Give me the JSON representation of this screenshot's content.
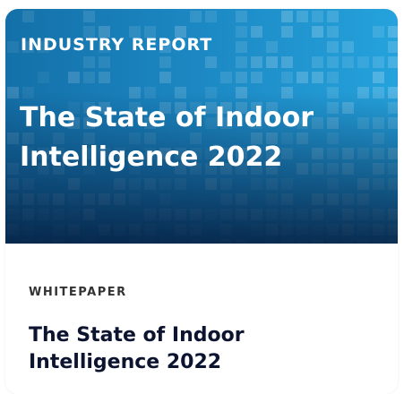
{
  "banner": {
    "label": "INDUSTRY REPORT",
    "title": "The State of Indoor Intelligence 2022",
    "colors": {
      "start": "#1470a8",
      "end": "#25a2dc",
      "shade": "#052042"
    }
  },
  "card": {
    "type_label": "WHITEPAPER",
    "title": "The State of Indoor Intelligence 2022"
  }
}
